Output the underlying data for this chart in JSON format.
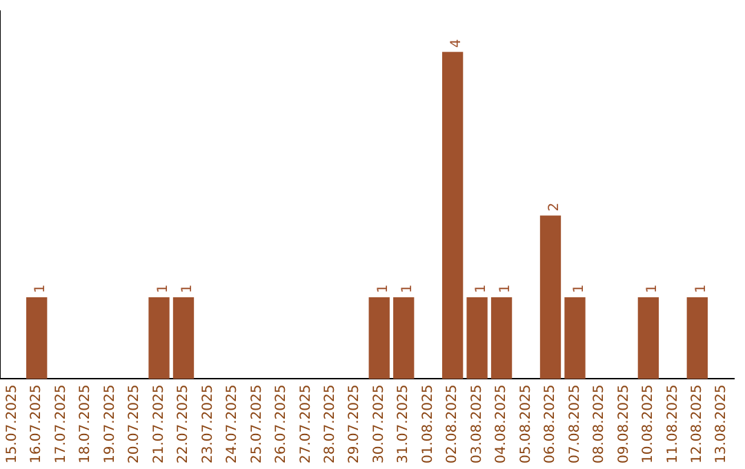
{
  "chart_data": {
    "type": "bar",
    "categories": [
      "15.07.2025",
      "16.07.2025",
      "17.07.2025",
      "18.07.2025",
      "19.07.2025",
      "20.07.2025",
      "21.07.2025",
      "22.07.2025",
      "23.07.2025",
      "24.07.2025",
      "25.07.2025",
      "26.07.2025",
      "27.07.2025",
      "28.07.2025",
      "29.07.2025",
      "30.07.2025",
      "31.07.2025",
      "01.08.2025",
      "02.08.2025",
      "03.08.2025",
      "04.08.2025",
      "05.08.2025",
      "06.08.2025",
      "07.08.2025",
      "08.08.2025",
      "09.08.2025",
      "10.08.2025",
      "11.08.2025",
      "12.08.2025",
      "13.08.2025"
    ],
    "values": [
      null,
      1,
      null,
      null,
      null,
      null,
      1,
      1,
      null,
      null,
      null,
      null,
      null,
      null,
      null,
      1,
      1,
      null,
      4,
      1,
      1,
      null,
      2,
      1,
      null,
      null,
      1,
      null,
      1,
      null
    ],
    "color": "#a0522d",
    "data_labels": true,
    "grid": false,
    "legend": false,
    "tick_labels": "x"
  }
}
